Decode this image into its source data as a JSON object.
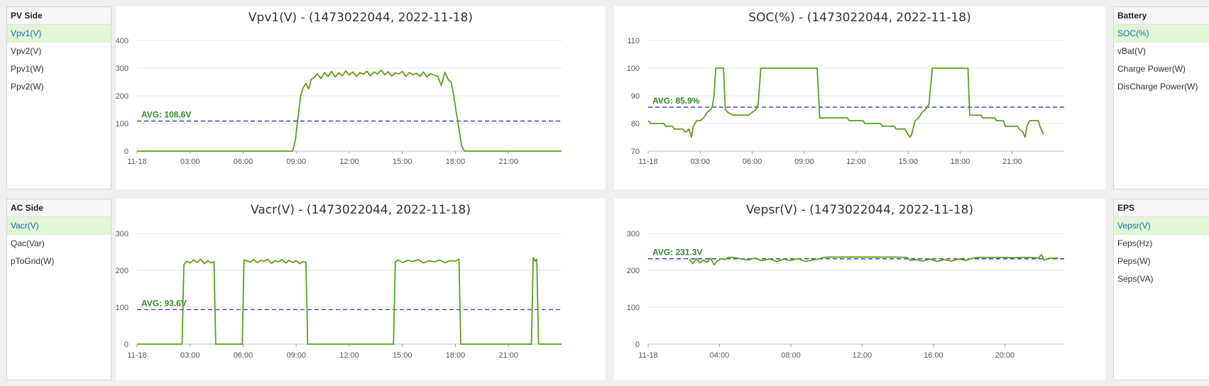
{
  "panels": {
    "pv": {
      "title": "PV Side",
      "items": [
        "Vpv1(V)",
        "Vpv2(V)",
        "Ppv1(W)",
        "Ppv2(W)"
      ],
      "active": 0
    },
    "battery": {
      "title": "Battery",
      "items": [
        "SOC(%)",
        "vBat(V)",
        "Charge Power(W)",
        "DisCharge Power(W)"
      ],
      "active": 0
    },
    "ac": {
      "title": "AC Side",
      "items": [
        "Vacr(V)",
        "Qac(Var)",
        "pToGrid(W)"
      ],
      "active": 0
    },
    "eps": {
      "title": "EPS",
      "items": [
        "Vepsr(V)",
        "Feps(Hz)",
        "Peps(W)",
        "Seps(VA)"
      ],
      "active": 0
    }
  },
  "colors": {
    "line": "#5aa118",
    "avg": "#1b1bd6",
    "avg_label": "#2e8b2e",
    "active_bg": "#dff5d6"
  },
  "chart_data": [
    {
      "id": "vpv1",
      "type": "line",
      "title": "Vpv1(V) - (1473022044, 2022-11-18)",
      "xlim": [
        0,
        24
      ],
      "ylim": [
        0,
        400
      ],
      "yticks": [
        0,
        100,
        200,
        300,
        400
      ],
      "xticks": [
        {
          "v": 0,
          "label": "11-18"
        },
        {
          "v": 3,
          "label": "03:00"
        },
        {
          "v": 6,
          "label": "06:00"
        },
        {
          "v": 9,
          "label": "09:00"
        },
        {
          "v": 12,
          "label": "12:00"
        },
        {
          "v": 15,
          "label": "15:00"
        },
        {
          "v": 18,
          "label": "18:00"
        },
        {
          "v": 21,
          "label": "21:00"
        }
      ],
      "avg_value": 108.6,
      "avg_label": "AVG: 108.6V",
      "series": [
        {
          "x": [
            0,
            8.8,
            8.95,
            9.1,
            9.25,
            9.4,
            9.55,
            9.7,
            9.85,
            10.0,
            10.2,
            10.4,
            10.6,
            10.8,
            11.0,
            11.2,
            11.4,
            11.6,
            11.8,
            12.0,
            12.2,
            12.4,
            12.6,
            12.8,
            13.0,
            13.2,
            13.4,
            13.6,
            13.8,
            14.0,
            14.2,
            14.4,
            14.6,
            14.8,
            15.0,
            15.2,
            15.4,
            15.6,
            15.8,
            16.0,
            16.2,
            16.4,
            16.6,
            16.8,
            17.0,
            17.2,
            17.4,
            17.6,
            17.75,
            17.9,
            18.05,
            18.2,
            18.35,
            18.5,
            24
          ],
          "y": [
            0,
            0,
            40,
            120,
            200,
            230,
            245,
            225,
            260,
            265,
            280,
            262,
            284,
            270,
            288,
            268,
            283,
            272,
            290,
            275,
            286,
            270,
            284,
            278,
            289,
            272,
            286,
            279,
            293,
            276,
            287,
            271,
            283,
            279,
            288,
            270,
            284,
            276,
            282,
            270,
            286,
            268,
            280,
            275,
            270,
            237,
            285,
            258,
            250,
            205,
            140,
            80,
            20,
            0,
            0
          ]
        }
      ]
    },
    {
      "id": "soc",
      "type": "line",
      "title": "SOC(%) - (1473022044, 2022-11-18)",
      "xlim": [
        0,
        24
      ],
      "ylim": [
        70,
        110
      ],
      "yticks": [
        70,
        80,
        90,
        100,
        110
      ],
      "xticks": [
        {
          "v": 0,
          "label": "11-18"
        },
        {
          "v": 3,
          "label": "03:00"
        },
        {
          "v": 6,
          "label": "06:00"
        },
        {
          "v": 9,
          "label": "09:00"
        },
        {
          "v": 12,
          "label": "12:00"
        },
        {
          "v": 15,
          "label": "15:00"
        },
        {
          "v": 18,
          "label": "18:00"
        },
        {
          "v": 21,
          "label": "21:00"
        }
      ],
      "avg_value": 85.9,
      "avg_label": "AVG: 85.9%",
      "series": [
        {
          "x": [
            0,
            0.15,
            0.3,
            0.9,
            1.0,
            1.4,
            1.5,
            2.0,
            2.1,
            2.2,
            2.35,
            2.5,
            2.6,
            2.7,
            2.8,
            3.0,
            3.2,
            3.4,
            3.6,
            3.7,
            3.8,
            3.9,
            4.0,
            4.35,
            4.45,
            4.6,
            4.9,
            5.8,
            6.0,
            6.2,
            6.35,
            6.5,
            9.75,
            9.9,
            11.5,
            11.6,
            12.4,
            12.5,
            13.4,
            13.5,
            14.2,
            14.3,
            14.8,
            14.9,
            15.1,
            15.2,
            15.4,
            15.6,
            15.8,
            16.0,
            16.2,
            16.4,
            18.45,
            18.55,
            19.2,
            19.3,
            20.0,
            20.1,
            20.5,
            20.6,
            21.3,
            21.4,
            21.6,
            21.75,
            21.85,
            22.0,
            22.5,
            22.6,
            22.8
          ],
          "y": [
            81,
            80,
            80,
            80,
            79,
            79,
            78,
            78,
            77,
            77,
            78,
            75,
            79,
            80,
            81,
            81,
            82,
            84,
            85,
            86,
            90,
            100,
            100,
            100,
            85,
            84,
            83,
            83,
            84,
            85,
            87,
            100,
            100,
            82,
            82,
            81,
            81,
            80,
            80,
            79,
            79,
            78,
            78,
            77,
            75,
            76,
            81,
            82,
            84,
            85,
            87,
            100,
            100,
            83,
            83,
            82,
            82,
            81,
            81,
            79,
            79,
            78,
            77,
            75,
            79,
            81,
            81,
            79,
            76
          ]
        }
      ]
    },
    {
      "id": "vacr",
      "type": "line",
      "title": "Vacr(V) - (1473022044, 2022-11-18)",
      "xlim": [
        0,
        24
      ],
      "ylim": [
        0,
        300
      ],
      "yticks": [
        0,
        100,
        200,
        300
      ],
      "xticks": [
        {
          "v": 0,
          "label": "11-18"
        },
        {
          "v": 3,
          "label": "03:00"
        },
        {
          "v": 6,
          "label": "06:00"
        },
        {
          "v": 9,
          "label": "09:00"
        },
        {
          "v": 12,
          "label": "12:00"
        },
        {
          "v": 15,
          "label": "15:00"
        },
        {
          "v": 18,
          "label": "18:00"
        },
        {
          "v": 21,
          "label": "21:00"
        }
      ],
      "avg_value": 93.6,
      "avg_label": "AVG: 93.6V",
      "series": [
        {
          "x": [
            0,
            2.55,
            2.65,
            2.8,
            3.0,
            3.2,
            3.4,
            3.6,
            3.8,
            4.0,
            4.2,
            4.35,
            4.45,
            5.95,
            6.05,
            6.2,
            6.4,
            6.6,
            6.8,
            7.0,
            7.2,
            7.4,
            7.6,
            7.8,
            8.0,
            8.2,
            8.4,
            8.6,
            8.8,
            9.0,
            9.2,
            9.4,
            9.55,
            9.65,
            14.5,
            14.6,
            14.75,
            15.0,
            15.3,
            15.6,
            15.9,
            16.2,
            16.5,
            16.8,
            17.1,
            17.4,
            17.7,
            18.0,
            18.2,
            18.3,
            22.3,
            22.4,
            22.5,
            22.6,
            22.7,
            24
          ],
          "y": [
            0,
            0,
            215,
            225,
            220,
            228,
            222,
            230,
            218,
            226,
            220,
            224,
            0,
            0,
            228,
            226,
            222,
            229,
            221,
            227,
            225,
            230,
            219,
            226,
            223,
            229,
            220,
            227,
            221,
            226,
            218,
            224,
            222,
            0,
            0,
            222,
            228,
            221,
            227,
            224,
            229,
            220,
            226,
            223,
            228,
            221,
            226,
            225,
            230,
            0,
            0,
            235,
            225,
            230,
            0,
            0
          ]
        }
      ]
    },
    {
      "id": "vepsr",
      "type": "line",
      "title": "Vepsr(V) - (1473022044, 2022-11-18)",
      "xlim": [
        0,
        23.33
      ],
      "ylim": [
        0,
        300
      ],
      "yticks": [
        0,
        100,
        200,
        300
      ],
      "xticks": [
        {
          "v": 0,
          "label": "11-18"
        },
        {
          "v": 4,
          "label": "04:00"
        },
        {
          "v": 8,
          "label": "08:00"
        },
        {
          "v": 12,
          "label": "12:00"
        },
        {
          "v": 16,
          "label": "16:00"
        },
        {
          "v": 20,
          "label": "20:00"
        }
      ],
      "avg_value": 231.3,
      "avg_label": "AVG: 231.3V",
      "series": [
        {
          "x": [
            2.3,
            2.5,
            2.7,
            2.9,
            3.1,
            3.3,
            3.5,
            3.7,
            3.9,
            4.1,
            4.3,
            4.5,
            4.8,
            5.2,
            5.6,
            6.0,
            6.4,
            6.8,
            7.2,
            7.6,
            8.0,
            8.4,
            8.8,
            9.2,
            9.6,
            9.8,
            10.2,
            10.8,
            11.5,
            12.2,
            13.0,
            13.8,
            14.5,
            14.7,
            15.0,
            15.4,
            15.8,
            16.2,
            16.6,
            17.0,
            17.4,
            17.8,
            18.2,
            18.5,
            19.0,
            19.5,
            20.0,
            20.5,
            21.0,
            21.5,
            21.9,
            22.05,
            22.2,
            22.5,
            23.0
          ],
          "y": [
            230,
            218,
            232,
            220,
            228,
            222,
            233,
            215,
            226,
            232,
            229,
            235,
            235,
            231,
            228,
            233,
            226,
            231,
            224,
            230,
            227,
            232,
            224,
            228,
            231,
            235,
            236,
            236,
            236,
            236,
            236,
            236,
            235,
            227,
            229,
            225,
            231,
            224,
            229,
            225,
            231,
            227,
            233,
            235,
            235,
            235,
            235,
            234,
            235,
            235,
            233,
            243,
            228,
            233,
            233
          ]
        }
      ]
    }
  ]
}
